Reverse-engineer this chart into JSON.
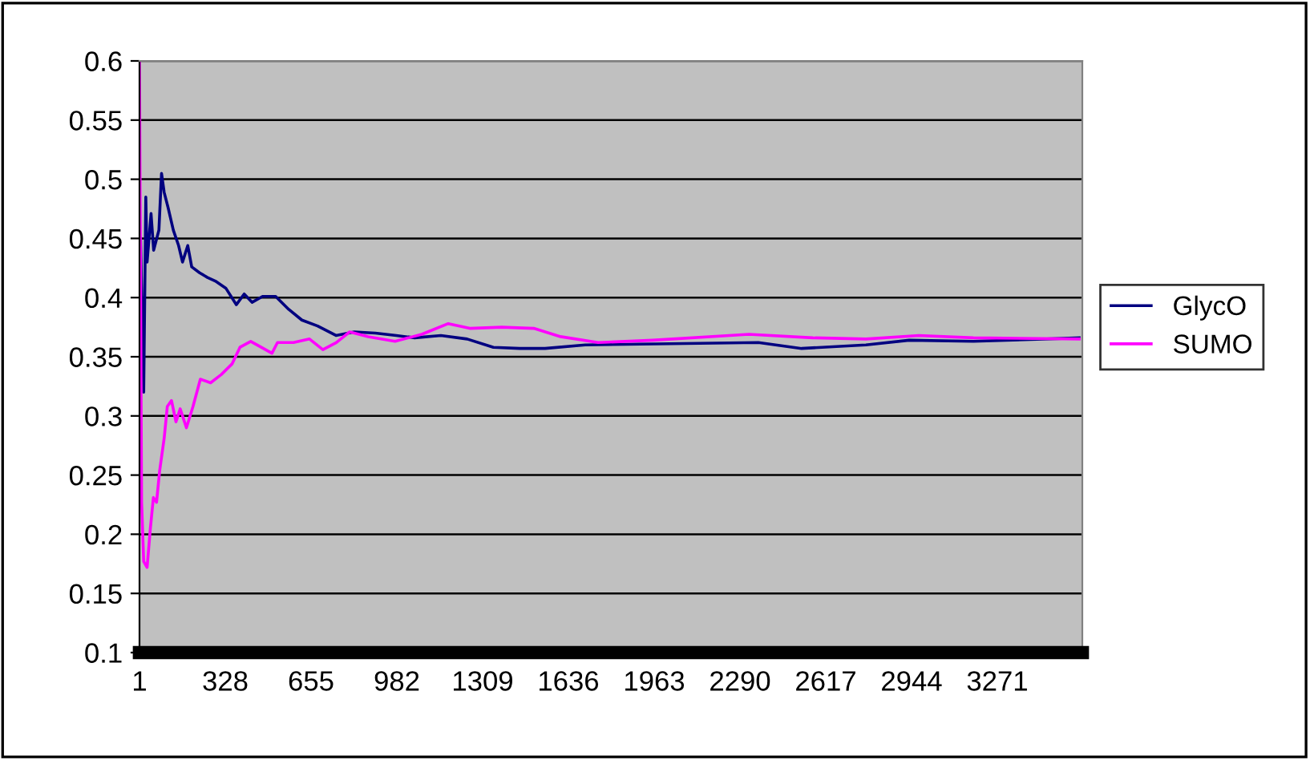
{
  "chart_data": {
    "type": "line",
    "xlim": [
      1,
      3595
    ],
    "xticks": [
      1,
      328,
      655,
      982,
      1309,
      1636,
      1963,
      2290,
      2617,
      2944,
      3271
    ],
    "ylim": [
      0.1,
      0.6
    ],
    "yticks": [
      0.1,
      0.15,
      0.2,
      0.25,
      0.3,
      0.35,
      0.4,
      0.45,
      0.5,
      0.55,
      0.6
    ],
    "grid": "y",
    "legend": "right",
    "marker": "none",
    "line_style": "solid",
    "series": [
      {
        "name": "GlycO",
        "color": "#000080",
        "x": [
          5,
          17,
          25,
          30,
          45,
          55,
          75,
          85,
          95,
          110,
          130,
          150,
          165,
          185,
          200,
          230,
          260,
          290,
          330,
          370,
          400,
          430,
          470,
          520,
          570,
          620,
          680,
          750,
          820,
          900,
          980,
          1050,
          1150,
          1250,
          1350,
          1450,
          1547,
          1700,
          2360,
          2525,
          2770,
          2935,
          3180,
          3583
        ],
        "values": [
          0.45,
          0.32,
          0.485,
          0.43,
          0.471,
          0.44,
          0.457,
          0.505,
          0.489,
          0.476,
          0.457,
          0.444,
          0.43,
          0.444,
          0.426,
          0.421,
          0.417,
          0.414,
          0.408,
          0.394,
          0.403,
          0.396,
          0.401,
          0.401,
          0.39,
          0.381,
          0.376,
          0.368,
          0.371,
          0.37,
          0.368,
          0.366,
          0.368,
          0.365,
          0.358,
          0.357,
          0.357,
          0.36,
          0.362,
          0.357,
          0.36,
          0.364,
          0.363,
          0.366
        ]
      },
      {
        "name": "SUMO",
        "color": "#ff00ff",
        "x": [
          1,
          9,
          17,
          30,
          42,
          54,
          66,
          78,
          95,
          107,
          123,
          140,
          156,
          180,
          205,
          233,
          272,
          313,
          354,
          384,
          425,
          465,
          506,
          527,
          588,
          649,
          700,
          751,
          802,
          873,
          975,
          1077,
          1178,
          1260,
          1382,
          1504,
          1606,
          1749,
          1957,
          2324,
          2568,
          2770,
          2972,
          3180,
          3583
        ],
        "values": [
          0.6,
          0.227,
          0.177,
          0.172,
          0.204,
          0.231,
          0.227,
          0.254,
          0.281,
          0.308,
          0.313,
          0.295,
          0.306,
          0.29,
          0.308,
          0.331,
          0.328,
          0.335,
          0.344,
          0.358,
          0.363,
          0.358,
          0.353,
          0.362,
          0.362,
          0.365,
          0.356,
          0.362,
          0.371,
          0.367,
          0.363,
          0.369,
          0.378,
          0.374,
          0.375,
          0.374,
          0.367,
          0.362,
          0.364,
          0.369,
          0.366,
          0.365,
          0.368,
          0.366,
          0.365
        ]
      }
    ]
  }
}
